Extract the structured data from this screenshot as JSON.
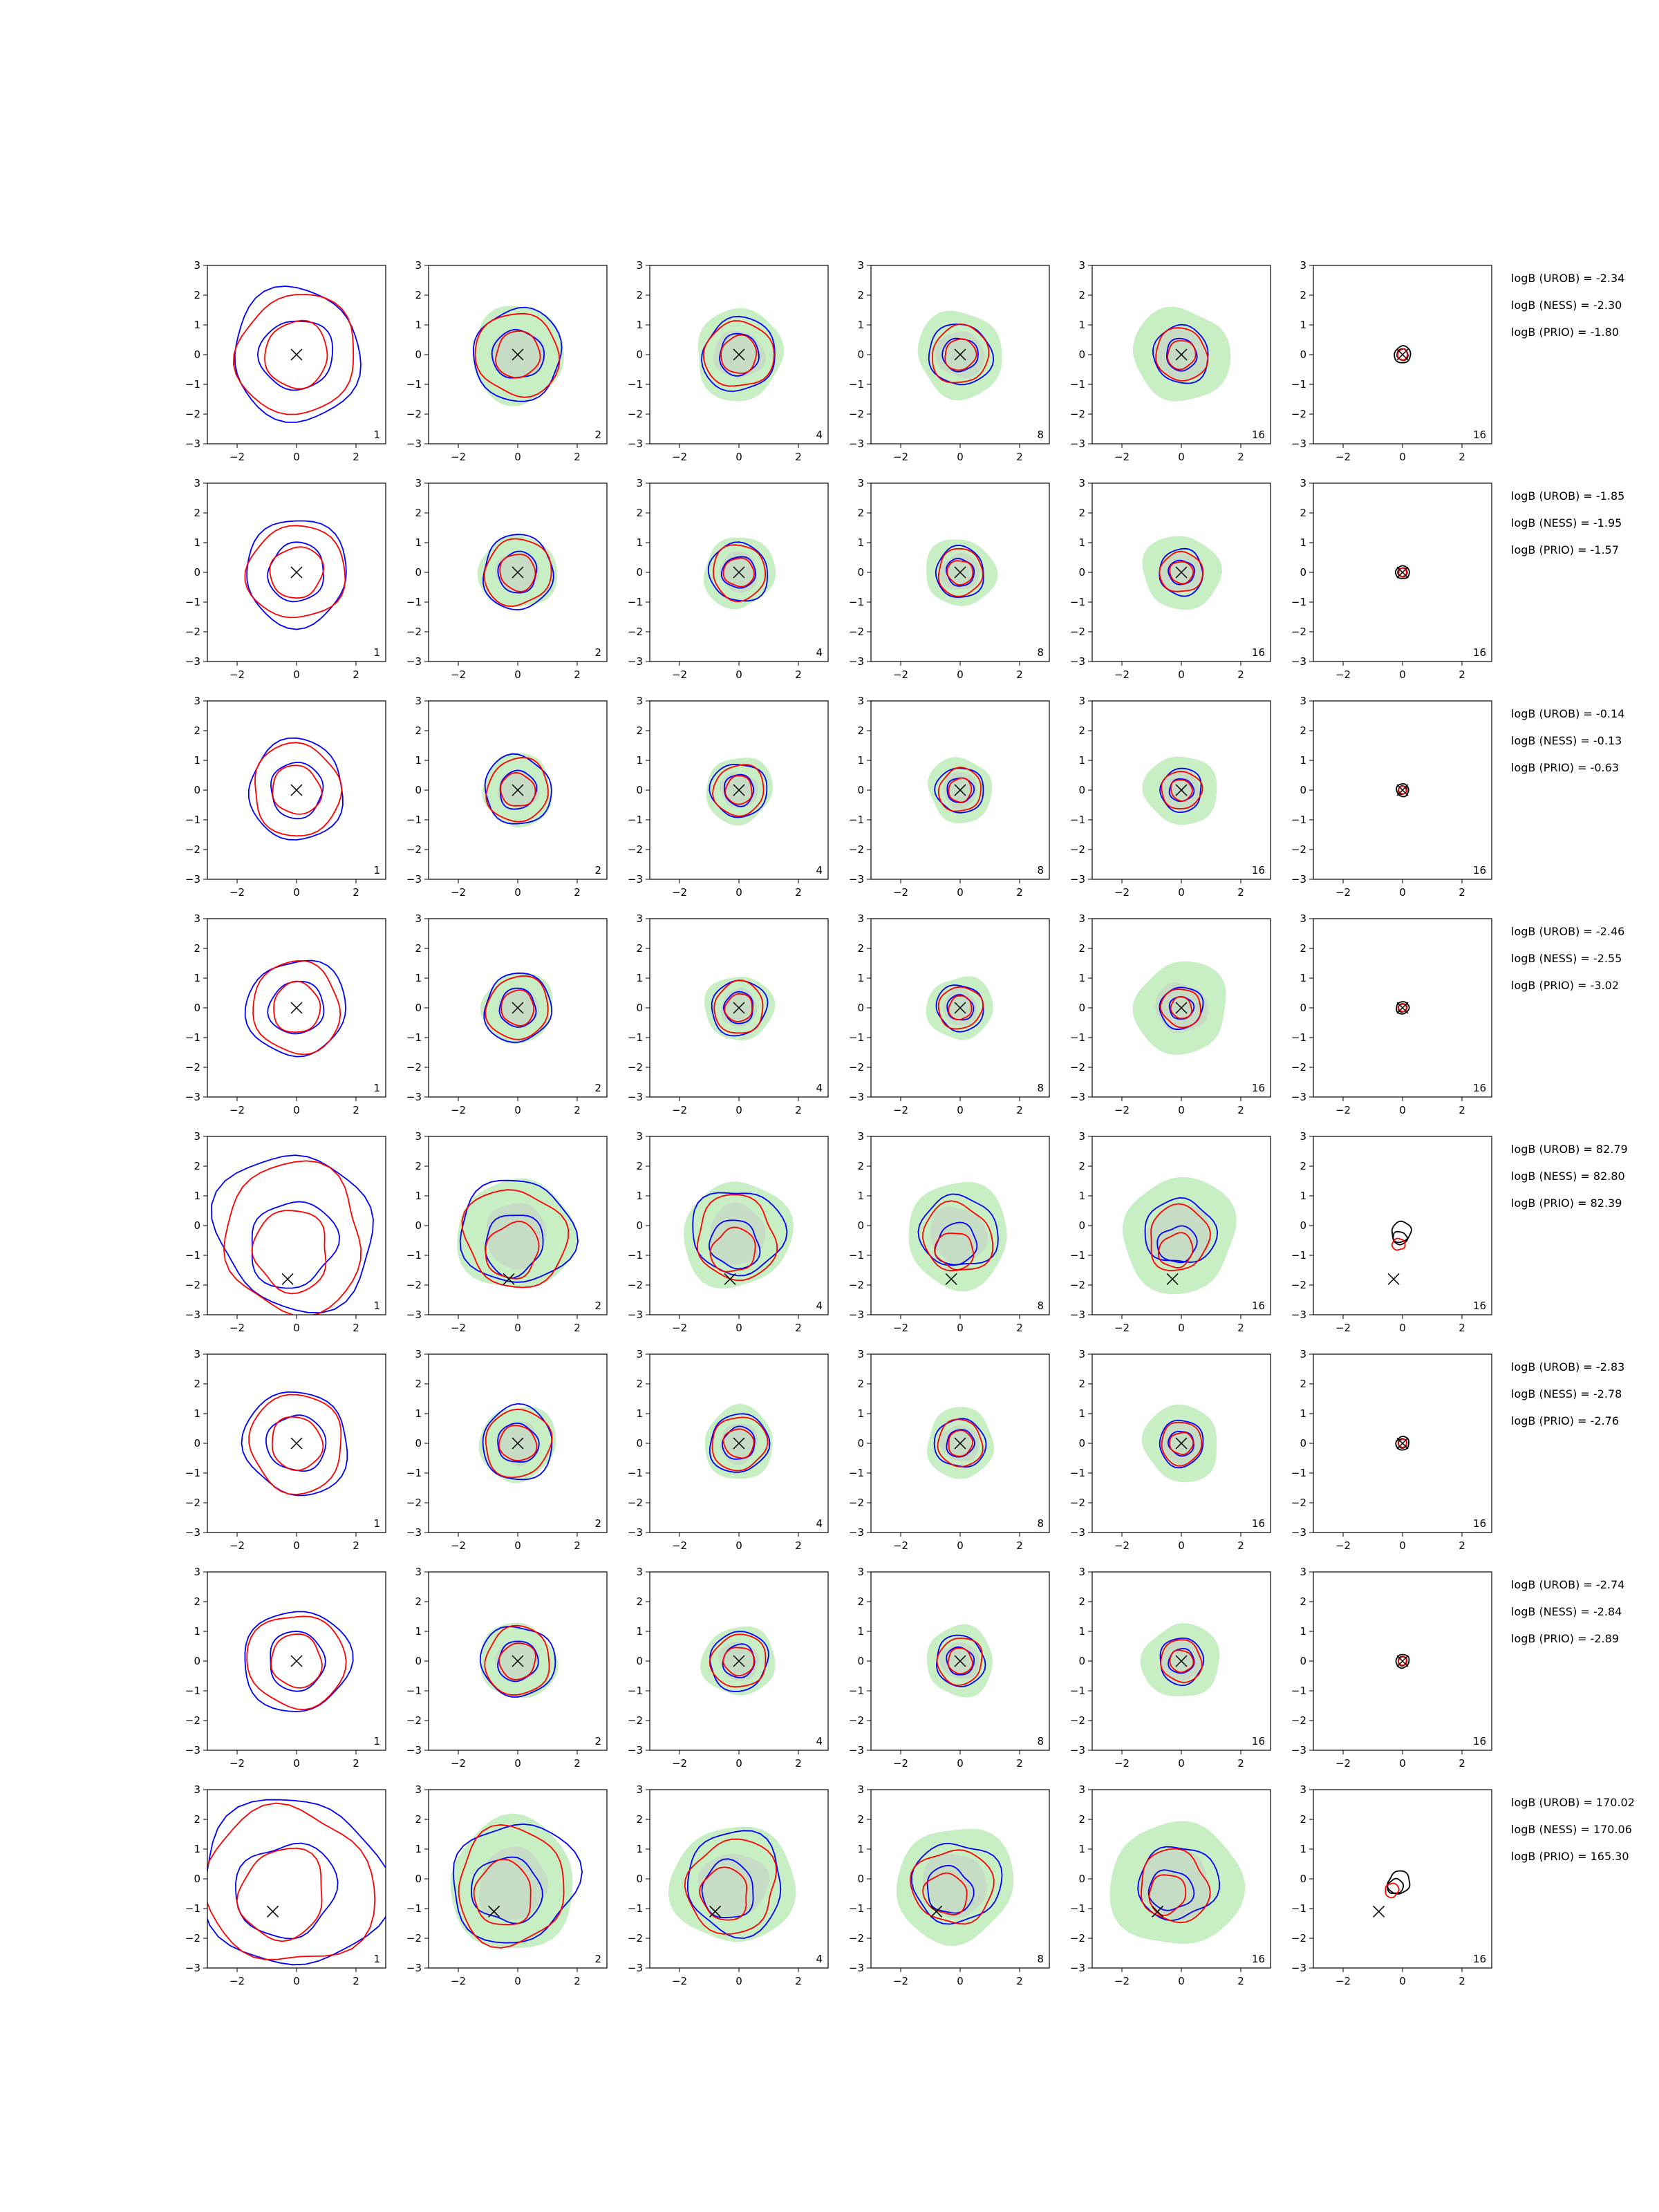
{
  "chart_data": {
    "type": "contour",
    "grid": {
      "rows": 8,
      "cols": 6
    },
    "xlim": [
      -3,
      3
    ],
    "ylim": [
      -3,
      3
    ],
    "xticks": [
      "−2",
      "0",
      "2"
    ],
    "yticks": [
      "−3",
      "−2",
      "−1",
      "0",
      "1",
      "2",
      "3"
    ],
    "column_labels": [
      "1",
      "2",
      "4",
      "8",
      "16",
      "16"
    ],
    "colors": {
      "blue": "#0000ff",
      "red": "#ff0000",
      "black": "#000000",
      "fill_green": "#c8eec4",
      "fill_grey": "#c4d4c4"
    },
    "rows": [
      {
        "marker": [
          0,
          0
        ],
        "extent": 1.0,
        "logB": [
          "logB (UROB) = -2.34",
          "logB (NESS) = -2.30",
          "logB (PRIO) = -1.80"
        ]
      },
      {
        "marker": [
          0,
          0
        ],
        "extent": 0.8,
        "logB": [
          "logB (UROB) = -1.85",
          "logB (NESS) = -1.95",
          "logB (PRIO) = -1.57"
        ]
      },
      {
        "marker": [
          0,
          0
        ],
        "extent": 0.75,
        "logB": [
          "logB (UROB) = -0.14",
          "logB (NESS) = -0.13",
          "logB (PRIO) = -0.63"
        ]
      },
      {
        "marker": [
          0,
          0
        ],
        "extent": 0.75,
        "logB": [
          "logB (UROB) = -2.46",
          "logB (NESS) = -2.55",
          "logB (PRIO) = -3.02"
        ]
      },
      {
        "marker": [
          -0.3,
          -1.8
        ],
        "extent": 1.2,
        "logB": [
          "logB (UROB) = 82.79",
          "logB (NESS) = 82.80",
          "logB (PRIO) = 82.39"
        ]
      },
      {
        "marker": [
          0,
          0
        ],
        "extent": 0.8,
        "logB": [
          "logB (UROB) = -2.83",
          "logB (NESS) = -2.78",
          "logB (PRIO) = -2.76"
        ]
      },
      {
        "marker": [
          0,
          0
        ],
        "extent": 0.8,
        "logB": [
          "logB (UROB) = -2.74",
          "logB (NESS) = -2.84",
          "logB (PRIO) = -2.89"
        ]
      },
      {
        "marker": [
          -0.8,
          -1.1
        ],
        "extent": 1.35,
        "logB": [
          "logB (UROB) = 170.02",
          "logB (NESS) = 170.06",
          "logB (PRIO) = 165.30"
        ]
      }
    ]
  }
}
